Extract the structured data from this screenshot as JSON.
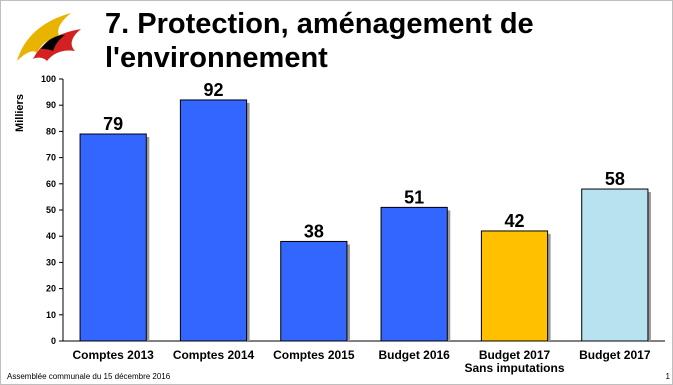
{
  "slide": {
    "title_line1": "7.  Protection, aménagement de",
    "title_line2": "l'environnement",
    "footer": "Assemblée communale du 15 décembre 2016",
    "page_number": "1"
  },
  "logo": {
    "icon": "flame-shield-icon",
    "colors": [
      "#e8b400",
      "#d42020",
      "#000000"
    ]
  },
  "chart_data": {
    "type": "bar",
    "categories": [
      [
        "Comptes 2013"
      ],
      [
        "Comptes 2014"
      ],
      [
        "Comptes 2015"
      ],
      [
        "Budget 2016"
      ],
      [
        "Budget 2017",
        "Sans imputations"
      ],
      [
        "Budget 2017"
      ]
    ],
    "values": [
      79,
      92,
      38,
      51,
      42,
      58
    ],
    "data_labels": [
      "79",
      "92",
      "38",
      "51",
      "42",
      "58"
    ],
    "bar_colors": [
      "#3366ff",
      "#3366ff",
      "#3366ff",
      "#3366ff",
      "#ffc000",
      "#b7e3f0"
    ],
    "ylabel": "Milliers",
    "ylim": [
      0,
      100
    ],
    "y_ticks": [
      0,
      10,
      20,
      30,
      40,
      50,
      60,
      70,
      80,
      90,
      100
    ],
    "grid": false,
    "legend": "none"
  }
}
